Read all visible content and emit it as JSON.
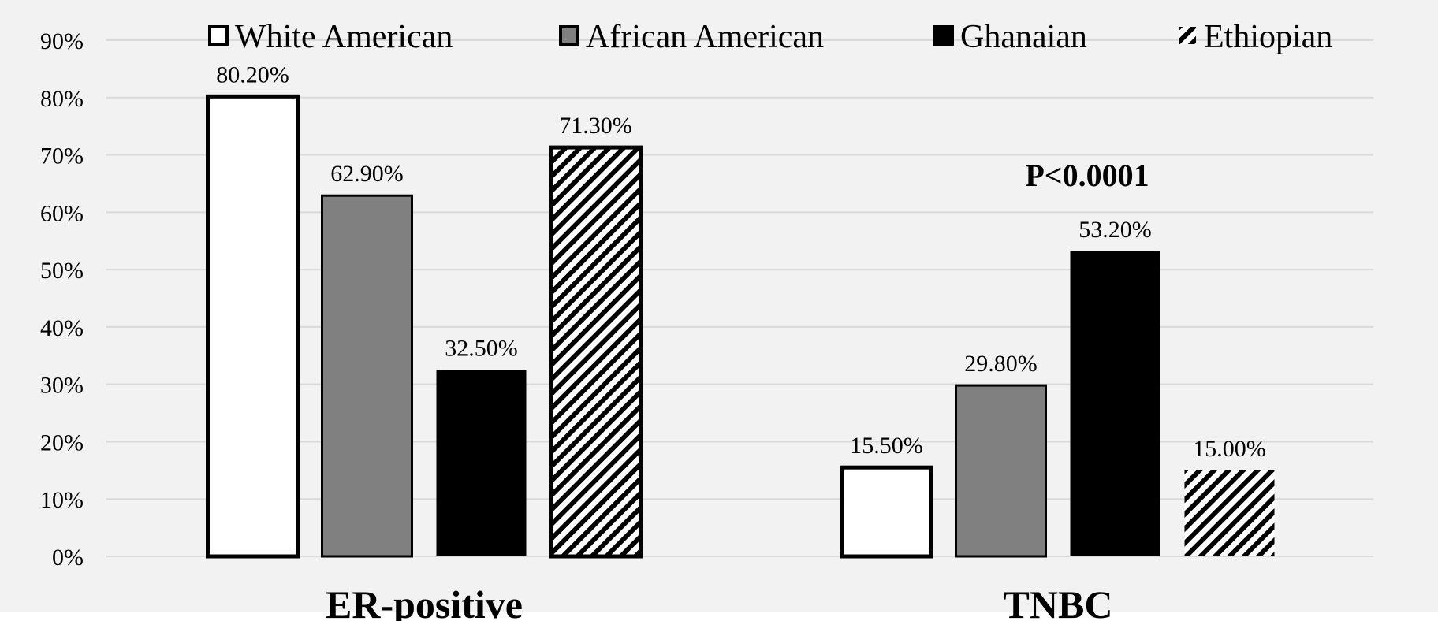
{
  "chart_data": {
    "type": "bar",
    "categories": [
      "ER-positive",
      "TNBC"
    ],
    "series": [
      {
        "name": "White American",
        "values": [
          80.2,
          15.5
        ],
        "labels": [
          "80.20%",
          "15.50%"
        ],
        "fill": "#ffffff",
        "pattern": "solid"
      },
      {
        "name": "African American",
        "values": [
          62.9,
          29.8
        ],
        "labels": [
          "62.90%",
          "29.80%"
        ],
        "fill": "#808080",
        "pattern": "solid"
      },
      {
        "name": "Ghanaian",
        "values": [
          32.5,
          53.2
        ],
        "labels": [
          "32.50%",
          "53.20%"
        ],
        "fill": "#000000",
        "pattern": "solid"
      },
      {
        "name": "Ethiopian",
        "values": [
          71.3,
          15.0
        ],
        "labels": [
          "71.30%",
          "15.00%"
        ],
        "fill": "#000000",
        "pattern": "diagonal-hatch"
      }
    ],
    "y_ticks": [
      "0%",
      "10%",
      "20%",
      "30%",
      "40%",
      "50%",
      "60%",
      "70%",
      "80%",
      "90%"
    ],
    "ylim": [
      0,
      90
    ],
    "annotation": "P<0.0001",
    "legend_position": "top",
    "grid": true,
    "background": "#f2f2f2",
    "gridline_color": "#d9d9d9"
  }
}
